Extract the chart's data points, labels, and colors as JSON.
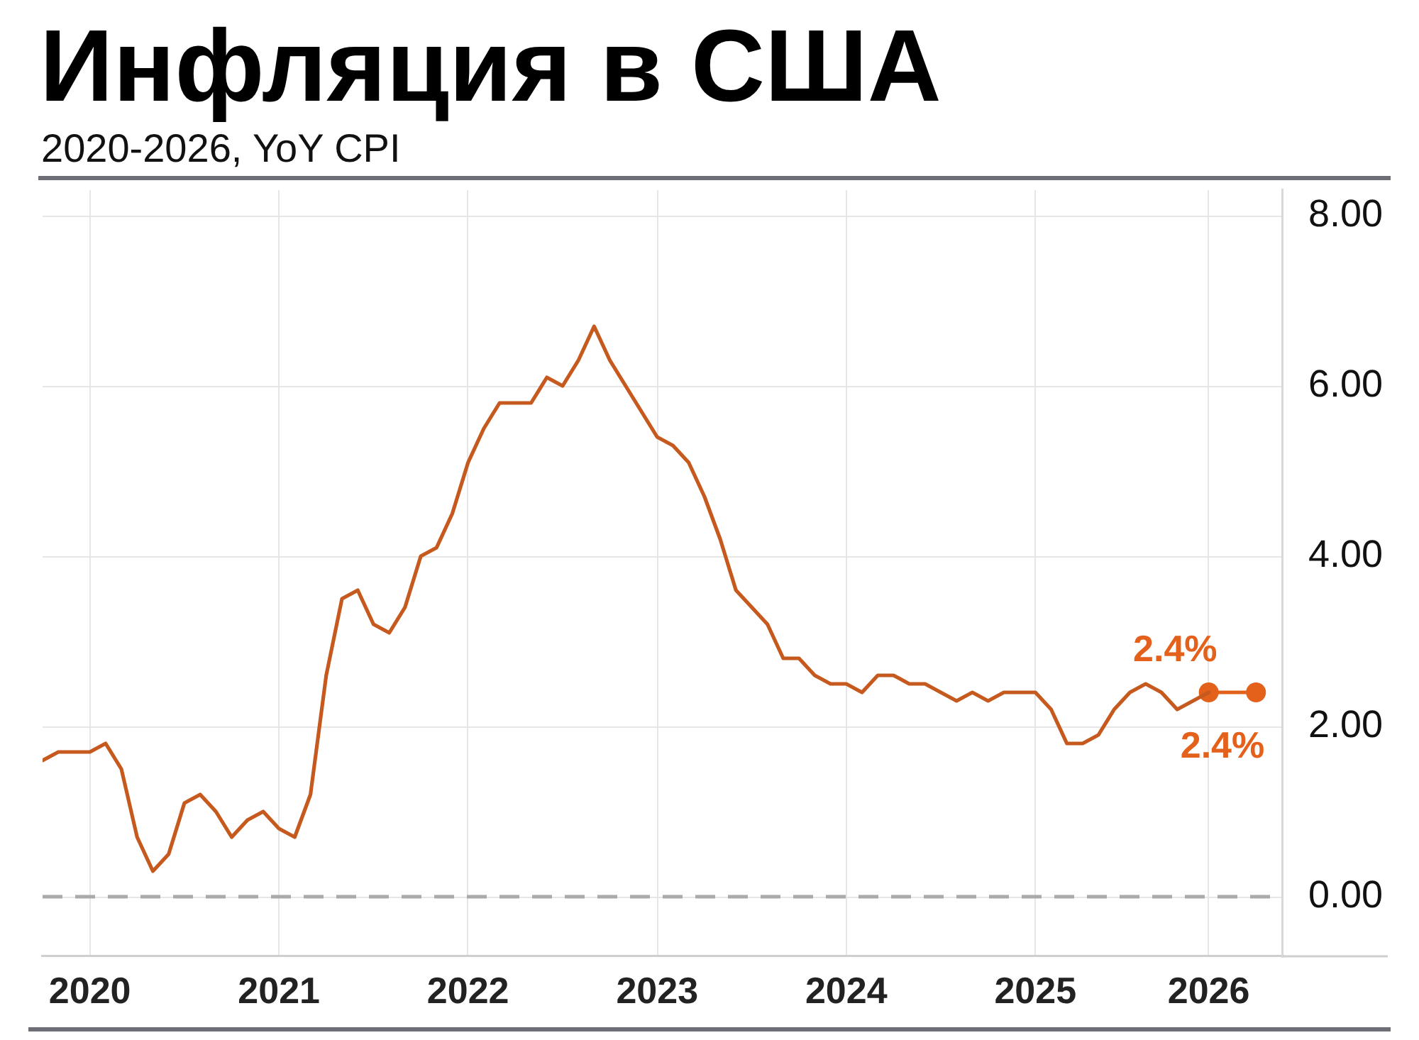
{
  "chart_data": {
    "type": "line",
    "title": "Инфляция в США",
    "subtitle": "2020-2026, YoY CPI",
    "categories": [
      null,
      null,
      null,
      "2020",
      null,
      null,
      null,
      null,
      null,
      null,
      null,
      null,
      null,
      null,
      null,
      "2021",
      null,
      null,
      null,
      null,
      null,
      null,
      null,
      null,
      null,
      null,
      null,
      "2022",
      null,
      null,
      null,
      null,
      null,
      null,
      null,
      null,
      null,
      null,
      null,
      "2023",
      null,
      null,
      null,
      null,
      null,
      null,
      null,
      null,
      null,
      null,
      null,
      "2024",
      null,
      null,
      null,
      null,
      null,
      null,
      null,
      null,
      null,
      null,
      null,
      "2025",
      null,
      null,
      null,
      null,
      null,
      null,
      null,
      null,
      null,
      null,
      "2026",
      null,
      null,
      null
    ],
    "series": [
      {
        "color": "#c65a1e",
        "marker": "none",
        "values": [
          1.6,
          1.7,
          1.7,
          1.7,
          1.8,
          1.5,
          0.7,
          0.3,
          0.5,
          1.1,
          1.2,
          1.0,
          0.7,
          0.9,
          1.0,
          0.8,
          0.7,
          1.2,
          2.6,
          3.5,
          3.6,
          3.2,
          3.1,
          3.4,
          4.0,
          4.1,
          4.5,
          5.1,
          5.5,
          5.8,
          5.8,
          5.8,
          6.1,
          6.0,
          6.3,
          6.7,
          6.3,
          6.0,
          5.7,
          5.4,
          5.3,
          5.1,
          4.7,
          4.2,
          3.6,
          3.4,
          3.2,
          2.8,
          2.8,
          2.6,
          2.5,
          2.5,
          2.4,
          2.6,
          2.6,
          2.5,
          2.5,
          2.4,
          2.3,
          2.4,
          2.3,
          2.4,
          2.4,
          2.4,
          2.2,
          1.8,
          1.8,
          1.9,
          2.2,
          2.4,
          2.5,
          2.4,
          2.2,
          2.3,
          2.4,
          null,
          null,
          null
        ]
      },
      {
        "color": "#e4611b",
        "marker": "circle",
        "values": [
          null,
          null,
          null,
          null,
          null,
          null,
          null,
          null,
          null,
          null,
          null,
          null,
          null,
          null,
          null,
          null,
          null,
          null,
          null,
          null,
          null,
          null,
          null,
          null,
          null,
          null,
          null,
          null,
          null,
          null,
          null,
          null,
          null,
          null,
          null,
          null,
          null,
          null,
          null,
          null,
          null,
          null,
          null,
          null,
          null,
          null,
          null,
          null,
          null,
          null,
          null,
          null,
          null,
          null,
          null,
          null,
          null,
          null,
          null,
          null,
          null,
          null,
          null,
          null,
          null,
          null,
          null,
          null,
          null,
          null,
          null,
          null,
          null,
          null,
          2.4,
          null,
          null,
          2.4
        ],
        "value_labels": [
          null,
          null,
          null,
          null,
          null,
          null,
          null,
          null,
          null,
          null,
          null,
          null,
          null,
          null,
          null,
          null,
          null,
          null,
          null,
          null,
          null,
          null,
          null,
          null,
          null,
          null,
          null,
          null,
          null,
          null,
          null,
          null,
          null,
          null,
          null,
          null,
          null,
          null,
          null,
          null,
          null,
          null,
          null,
          null,
          null,
          null,
          null,
          null,
          null,
          null,
          null,
          null,
          null,
          null,
          null,
          null,
          null,
          null,
          null,
          null,
          null,
          null,
          null,
          null,
          null,
          null,
          null,
          null,
          null,
          null,
          null,
          null,
          null,
          null,
          "2.4%",
          null,
          null,
          "2.4%"
        ]
      }
    ],
    "ylim": [
      -0.7,
      8.3
    ],
    "yticks": [
      {
        "value": 0,
        "label": "0.00"
      },
      {
        "value": 2,
        "label": "2.00"
      },
      {
        "value": 4,
        "label": "4.00"
      },
      {
        "value": 6,
        "label": "6.00"
      },
      {
        "value": 8,
        "label": "8.00"
      }
    ],
    "grid": true,
    "ref_lines": [
      {
        "axis": "y",
        "value": 0,
        "color": "#aaaaaa",
        "line_style": "dashed"
      }
    ]
  }
}
